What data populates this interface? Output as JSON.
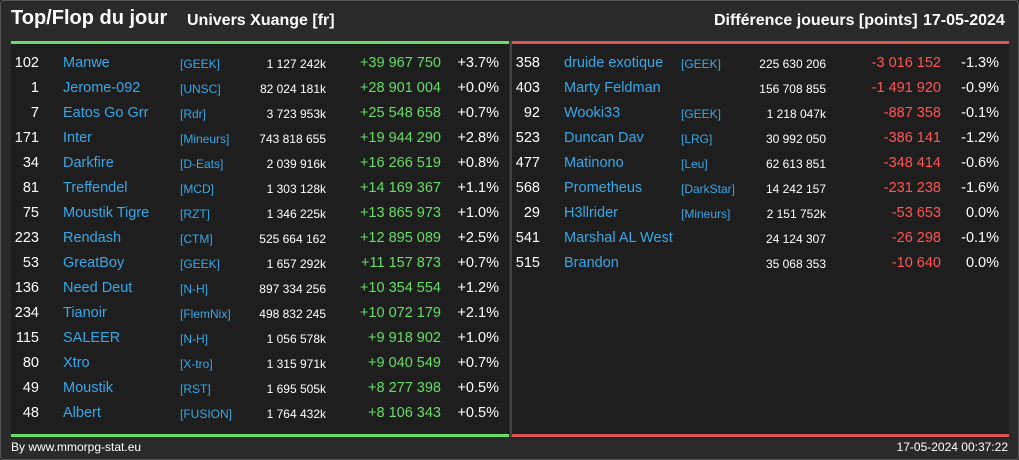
{
  "header": {
    "title": "Top/Flop du jour",
    "universe": "Univers Xuange [fr]",
    "metric": "Différence joueurs [points]",
    "date": "17-05-2024"
  },
  "colors": {
    "gain": "#66dd66",
    "loss": "#ff5555",
    "link": "#38a8e6"
  },
  "top": [
    {
      "rank": "102",
      "name": "Manwe",
      "ally": "[GEEK]",
      "points": "1 127 242k",
      "diff": "+39 967 750",
      "pct": "+3.7%"
    },
    {
      "rank": "1",
      "name": "Jerome-092",
      "ally": "[UNSC]",
      "points": "82 024 181k",
      "diff": "+28 901 004",
      "pct": "+0.0%"
    },
    {
      "rank": "7",
      "name": "Eatos Go Grr",
      "ally": "[Rdr]",
      "points": "3 723 953k",
      "diff": "+25 548 658",
      "pct": "+0.7%"
    },
    {
      "rank": "171",
      "name": "Inter",
      "ally": "[Mineurs]",
      "points": "743 818 655",
      "diff": "+19 944 290",
      "pct": "+2.8%"
    },
    {
      "rank": "34",
      "name": "Darkfire",
      "ally": "[D-Eats]",
      "points": "2 039 916k",
      "diff": "+16 266 519",
      "pct": "+0.8%"
    },
    {
      "rank": "81",
      "name": "Treffendel",
      "ally": "[MCD]",
      "points": "1 303 128k",
      "diff": "+14 169 367",
      "pct": "+1.1%"
    },
    {
      "rank": "75",
      "name": "Moustik Tigre",
      "ally": "[RZT]",
      "points": "1 346 225k",
      "diff": "+13 865 973",
      "pct": "+1.0%"
    },
    {
      "rank": "223",
      "name": "Rendash",
      "ally": "[CTM]",
      "points": "525 664 162",
      "diff": "+12 895 089",
      "pct": "+2.5%"
    },
    {
      "rank": "53",
      "name": "GreatBoy",
      "ally": "[GEEK]",
      "points": "1 657 292k",
      "diff": "+11 157 873",
      "pct": "+0.7%"
    },
    {
      "rank": "136",
      "name": "Need Deut",
      "ally": "[N-H]",
      "points": "897 334 256",
      "diff": "+10 354 554",
      "pct": "+1.2%"
    },
    {
      "rank": "234",
      "name": "Tianoir",
      "ally": "[FlemNix]",
      "points": "498 832 245",
      "diff": "+10 072 179",
      "pct": "+2.1%"
    },
    {
      "rank": "115",
      "name": "SALEER",
      "ally": "[N-H]",
      "points": "1 056 578k",
      "diff": "+9 918 902",
      "pct": "+1.0%"
    },
    {
      "rank": "80",
      "name": "Xtro",
      "ally": "[X-tro]",
      "points": "1 315 971k",
      "diff": "+9 040 549",
      "pct": "+0.7%"
    },
    {
      "rank": "49",
      "name": "Moustik",
      "ally": "[RST]",
      "points": "1 695 505k",
      "diff": "+8 277 398",
      "pct": "+0.5%"
    },
    {
      "rank": "48",
      "name": "Albert",
      "ally": "[FUSION]",
      "points": "1 764 432k",
      "diff": "+8 106 343",
      "pct": "+0.5%"
    }
  ],
  "flop": [
    {
      "rank": "358",
      "name": "druide exotique",
      "ally": "[GEEK]",
      "points": "225 630 206",
      "diff": "-3 016 152",
      "pct": "-1.3%"
    },
    {
      "rank": "403",
      "name": "Marty Feldman",
      "ally": "",
      "points": "156 708 855",
      "diff": "-1 491 920",
      "pct": "-0.9%"
    },
    {
      "rank": "92",
      "name": "Wooki33",
      "ally": "[GEEK]",
      "points": "1 218 047k",
      "diff": "-887 358",
      "pct": "-0.1%"
    },
    {
      "rank": "523",
      "name": "Duncan Dav",
      "ally": "[LRG]",
      "points": "30 992 050",
      "diff": "-386 141",
      "pct": "-1.2%"
    },
    {
      "rank": "477",
      "name": "Matinono",
      "ally": "[Leu]",
      "points": "62 613 851",
      "diff": "-348 414",
      "pct": "-0.6%"
    },
    {
      "rank": "568",
      "name": "Prometheus",
      "ally": "[DarkStar]",
      "points": "14 242 157",
      "diff": "-231 238",
      "pct": "-1.6%"
    },
    {
      "rank": "29",
      "name": "H3llrider",
      "ally": "[Mineurs]",
      "points": "2 151 752k",
      "diff": "-53 653",
      "pct": "0.0%"
    },
    {
      "rank": "541",
      "name": "Marshal AL West",
      "ally": "",
      "points": "24 124 307",
      "diff": "-26 298",
      "pct": "-0.1%"
    },
    {
      "rank": "515",
      "name": "Brandon",
      "ally": "",
      "points": "35 068 353",
      "diff": "-10 640",
      "pct": "0.0%"
    }
  ],
  "footer": {
    "source": "By www.mmorpg-stat.eu",
    "timestamp": "17-05-2024 00:37:22"
  }
}
